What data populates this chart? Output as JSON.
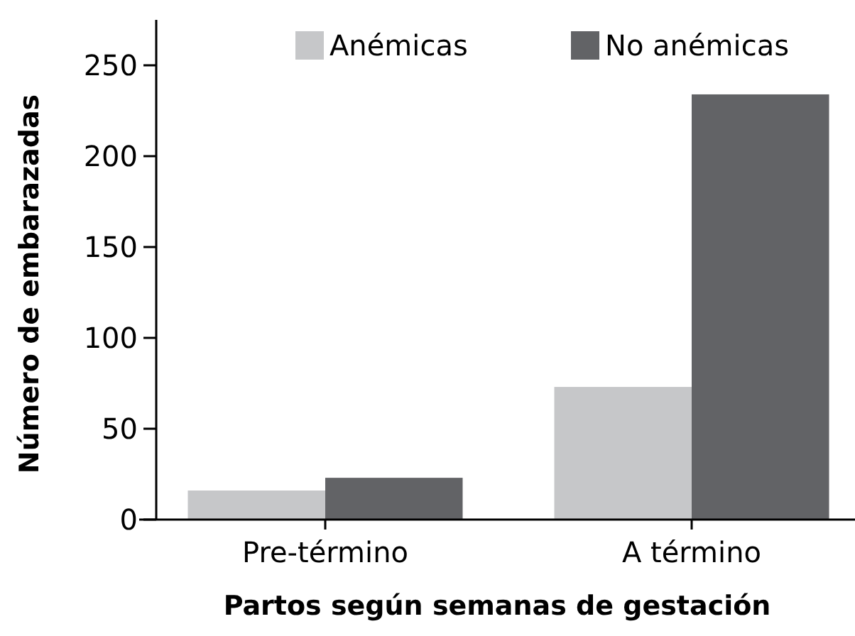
{
  "chart_data": {
    "type": "bar",
    "xlabel": "Partos según semanas de gestación",
    "ylabel": "Número de embarazadas",
    "categories": [
      "Pre-término",
      "A término"
    ],
    "series": [
      {
        "name": "Anémicas",
        "color": "#c6c7c9",
        "values": [
          16,
          73
        ]
      },
      {
        "name": "No anémicas",
        "color": "#626366",
        "values": [
          23,
          234
        ]
      }
    ],
    "ylim": [
      0,
      275
    ],
    "yticks": [
      0,
      50,
      100,
      150,
      200,
      250
    ],
    "grid": false,
    "legend": "top right"
  }
}
